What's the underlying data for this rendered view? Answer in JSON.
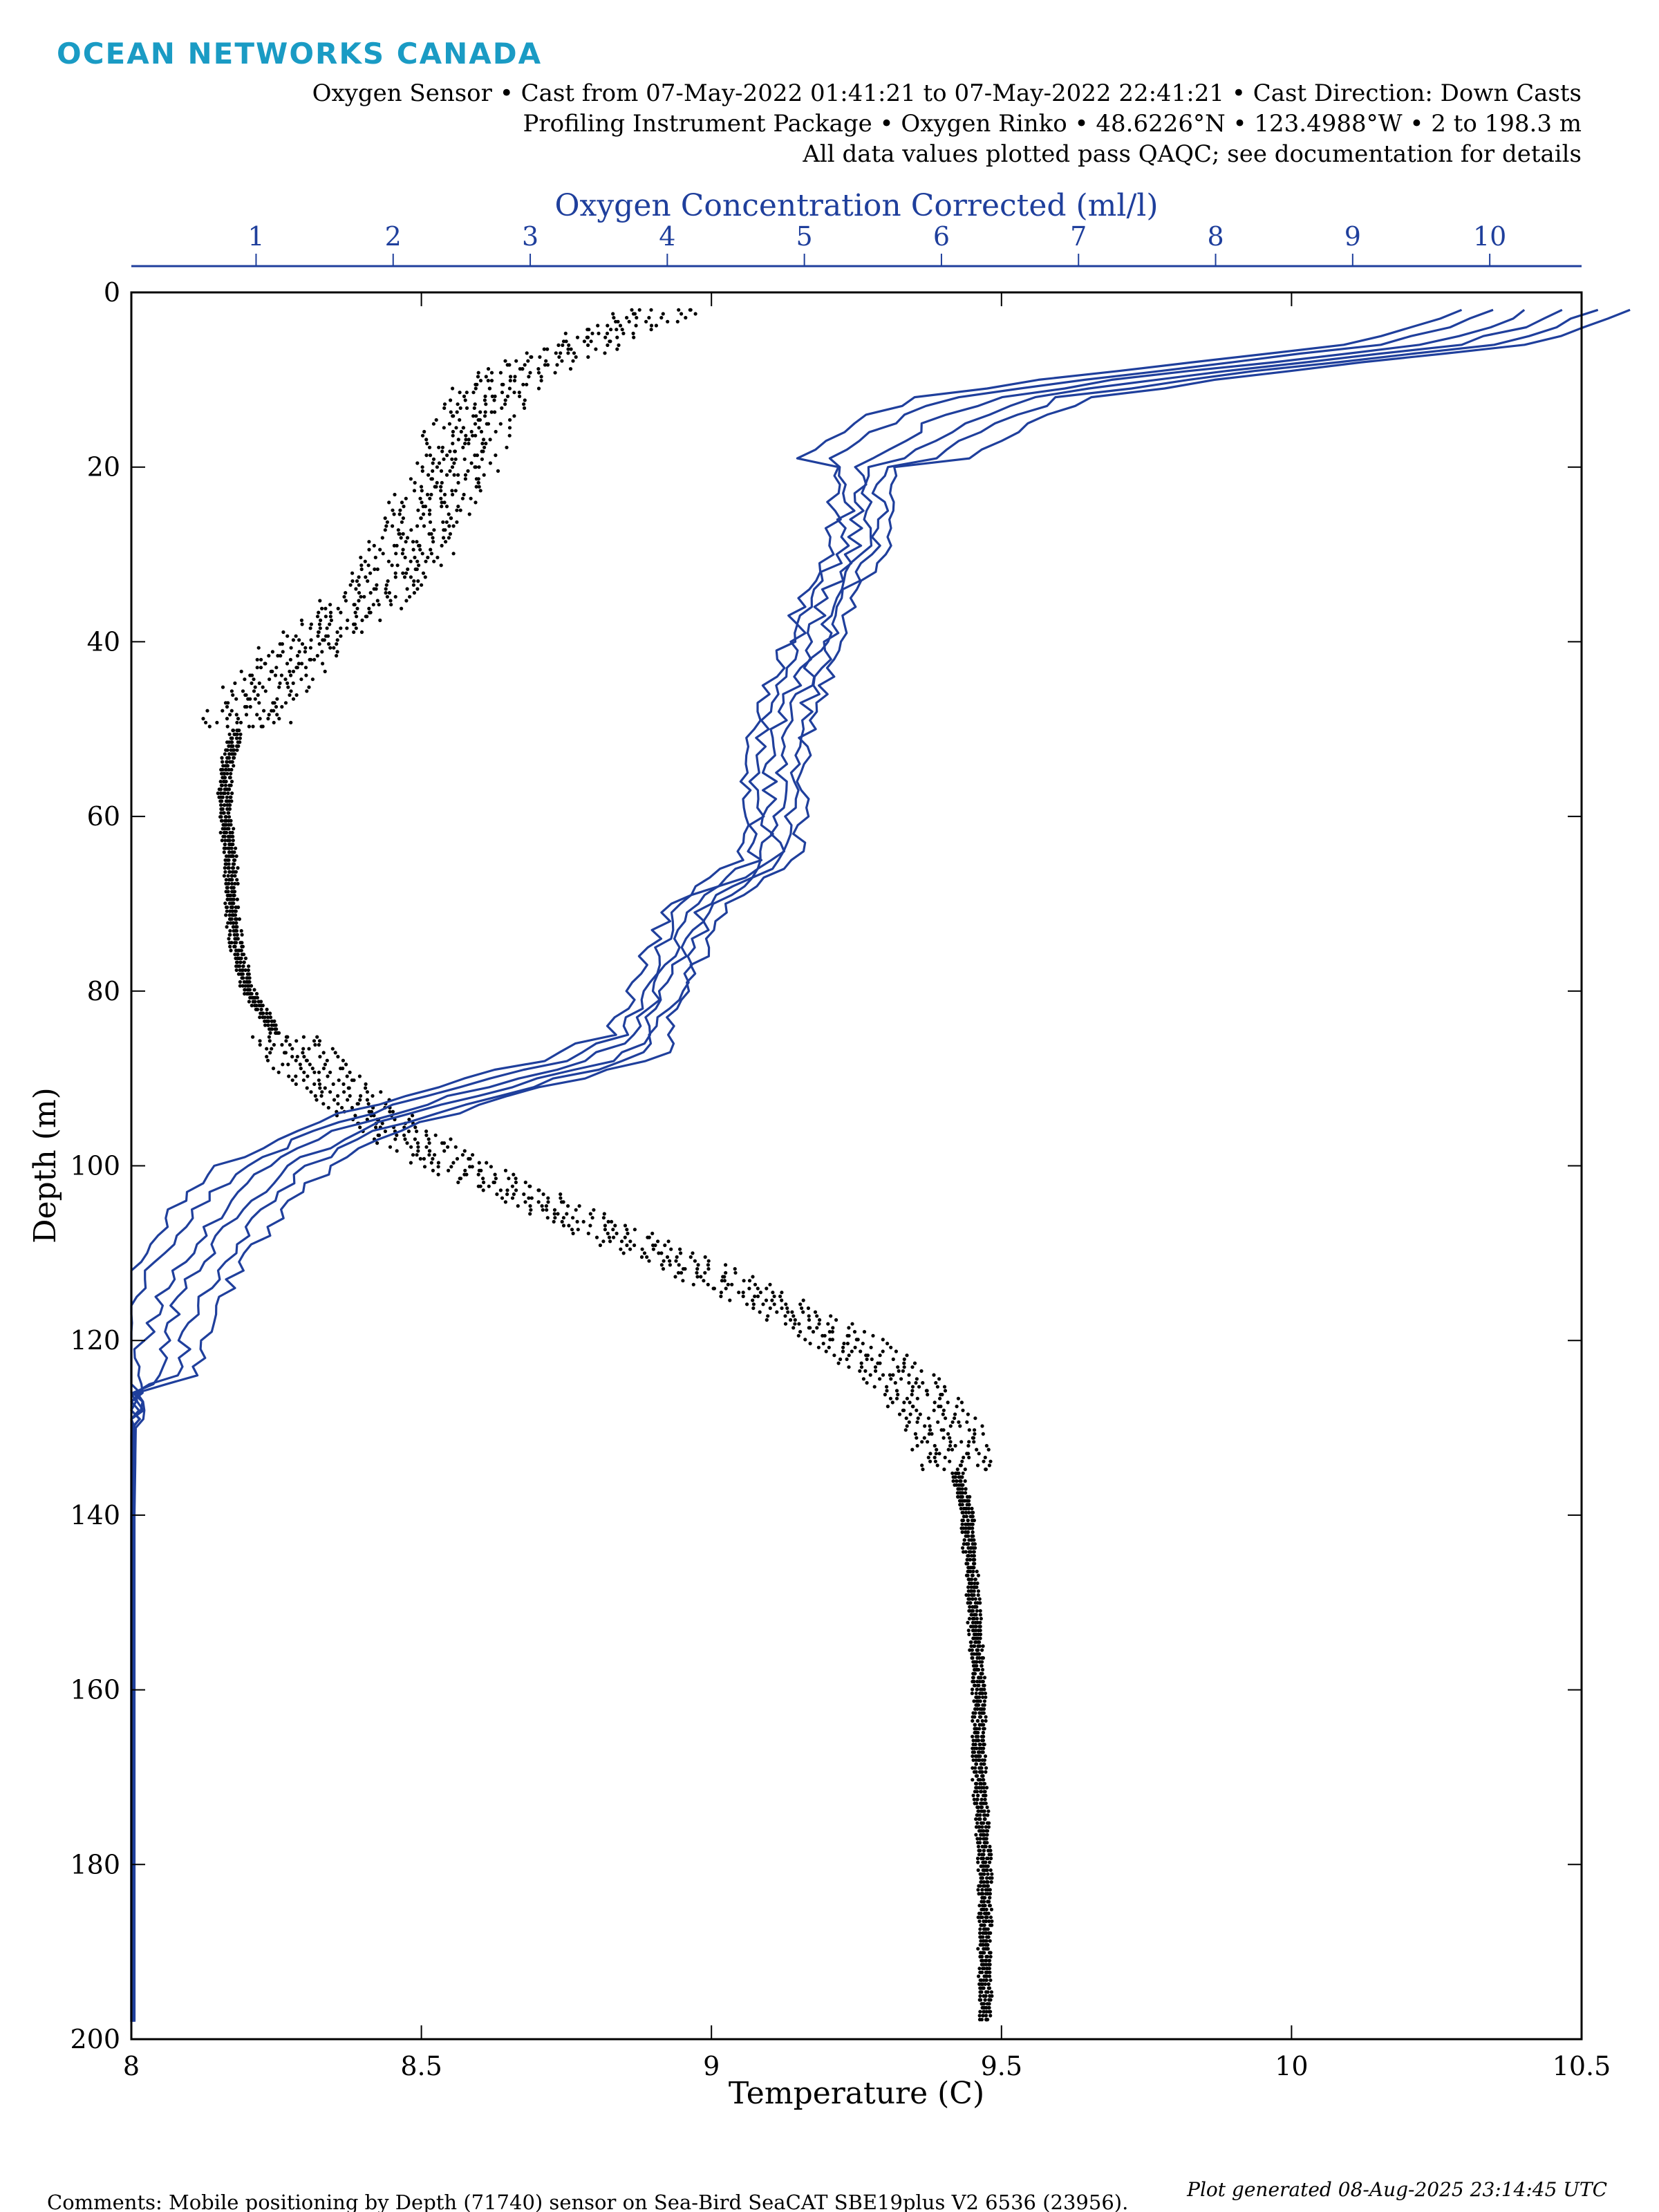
{
  "header": {
    "logo_text": "OCEAN NETWORKS CANADA",
    "logo_color": "#1a9bc4",
    "subtitle_lines": [
      "Oxygen Sensor • Cast from 07-May-2022 01:41:21 to 07-May-2022 22:41:21 • Cast Direction: Down Casts",
      "Profiling Instrument Package • Oxygen Rinko • 48.6226°N • 123.4988°W • 2 to 198.3 m",
      "All data values plotted pass QAQC; see documentation for details"
    ]
  },
  "footer": {
    "comments": "Comments: Mobile positioning by Depth (71740) sensor on Sea-Bird SeaCAT SBE19plus V2 6536 (23956).",
    "generated": "Plot generated 08-Aug-2025 23:14:45 UTC"
  },
  "colors": {
    "temperature": "#000000",
    "oxygen": "#1f3f9c"
  },
  "chart_data": {
    "type": "line",
    "orientation": "vertical-profile",
    "ylabel": "Depth (m)",
    "ylim": [
      0,
      200
    ],
    "y_reversed": true,
    "yticks": [
      0,
      20,
      40,
      60,
      80,
      100,
      120,
      140,
      160,
      180,
      200
    ],
    "bottom_axis": {
      "label": "Temperature (C)",
      "lim": [
        8,
        10.5
      ],
      "ticks": [
        8,
        8.5,
        9,
        9.5,
        10,
        10.5
      ],
      "tick_labels": [
        "8",
        "8.5",
        "9",
        "9.5",
        "10",
        "10.5"
      ]
    },
    "top_axis": {
      "label": "Oxygen Concentration Corrected (ml/l)",
      "lim": [
        0.09,
        10.67
      ],
      "ticks": [
        1,
        2,
        3,
        4,
        5,
        6,
        7,
        8,
        9,
        10
      ],
      "tick_labels": [
        "1",
        "2",
        "3",
        "4",
        "5",
        "6",
        "7",
        "8",
        "9",
        "10"
      ]
    },
    "grid": false,
    "series": [
      {
        "axis": "bottom",
        "style": "dots",
        "depth": [
          2,
          5,
          8,
          10,
          15,
          20,
          25,
          30,
          35,
          40,
          45,
          50,
          55,
          60,
          65,
          70,
          75,
          80,
          85,
          90,
          95,
          100,
          105,
          110,
          115,
          120,
          125,
          130,
          135,
          140,
          150,
          160,
          170,
          180,
          190,
          198
        ],
        "values": [
          8.9,
          8.8,
          8.7,
          8.63,
          8.57,
          8.55,
          8.5,
          8.47,
          8.4,
          8.3,
          8.22,
          8.18,
          8.16,
          8.16,
          8.17,
          8.17,
          8.18,
          8.2,
          8.25,
          8.32,
          8.42,
          8.55,
          8.72,
          8.9,
          9.07,
          9.22,
          9.33,
          9.39,
          9.42,
          9.44,
          9.45,
          9.46,
          9.46,
          9.47,
          9.47,
          9.47
        ]
      },
      {
        "axis": "top",
        "style": "lines",
        "depth": [
          2,
          4,
          6,
          8,
          10,
          12,
          15,
          20,
          25,
          30,
          35,
          40,
          50,
          55,
          60,
          65,
          70,
          75,
          80,
          85,
          88,
          90,
          93,
          96,
          100,
          105,
          110,
          115,
          120,
          125,
          130,
          140,
          160,
          180,
          198
        ],
        "values": [
          10.3,
          10.0,
          9.5,
          8.4,
          7.3,
          6.4,
          5.9,
          5.4,
          5.4,
          5.35,
          5.15,
          5.05,
          4.8,
          4.75,
          4.75,
          4.72,
          4.2,
          4.05,
          3.92,
          3.75,
          3.4,
          2.9,
          2.2,
          1.6,
          1.1,
          0.75,
          0.5,
          0.3,
          0.18,
          0.12,
          0.1,
          0.09,
          0.09,
          0.09,
          0.09
        ]
      }
    ]
  }
}
